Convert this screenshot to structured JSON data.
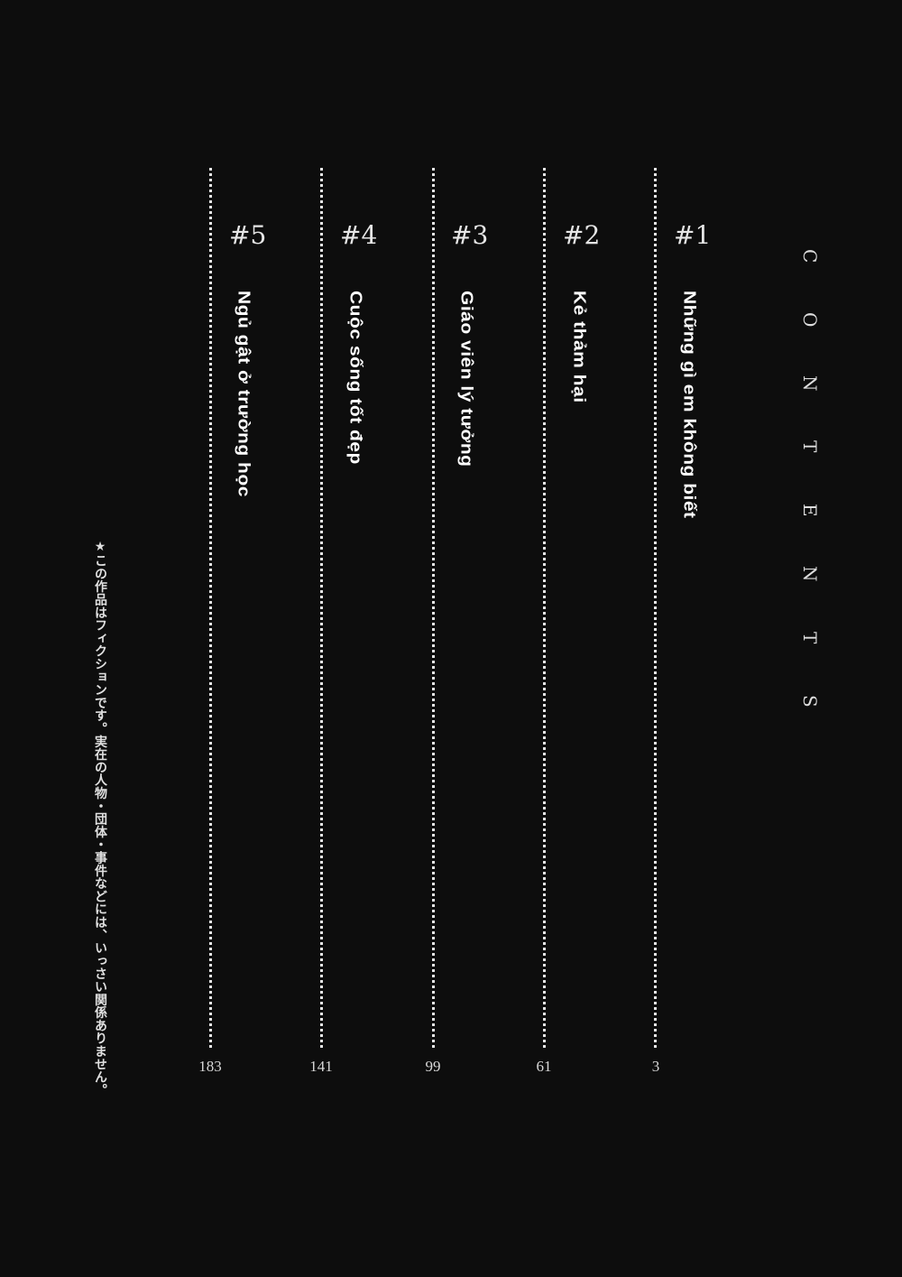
{
  "heading": [
    "C",
    "O",
    "N",
    "T",
    "E",
    "N",
    "T",
    "S"
  ],
  "chapters": [
    {
      "number": "#1",
      "title": "Những gì em không biết",
      "page": "3"
    },
    {
      "number": "#2",
      "title": "Kẻ thảm hại",
      "page": "61"
    },
    {
      "number": "#3",
      "title": "Giáo viên lý tưởng",
      "page": "99"
    },
    {
      "number": "#4",
      "title": "Cuộc sống tốt đẹp",
      "page": "141"
    },
    {
      "number": "#5",
      "title": "Ngủ gật ở trường học",
      "page": "183"
    }
  ],
  "notice": "★この作品はフィクションです。実在の人物・団体・事件などには、いっさい関係ありません。"
}
